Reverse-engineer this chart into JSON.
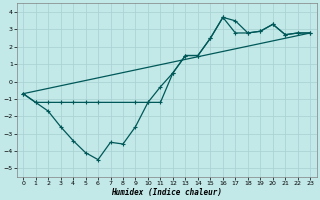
{
  "xlabel": "Humidex (Indice chaleur)",
  "bg_color": "#c2e8e8",
  "grid_color": "#a8d0d0",
  "line_color": "#005858",
  "xlim": [
    -0.5,
    23.5
  ],
  "ylim": [
    -5.5,
    4.5
  ],
  "yticks": [
    -5,
    -4,
    -3,
    -2,
    -1,
    0,
    1,
    2,
    3,
    4
  ],
  "xticks": [
    0,
    1,
    2,
    3,
    4,
    5,
    6,
    7,
    8,
    9,
    10,
    11,
    12,
    13,
    14,
    15,
    16,
    17,
    18,
    19,
    20,
    21,
    22,
    23
  ],
  "line1_x": [
    0,
    1,
    2,
    3,
    4,
    5,
    6,
    7,
    8,
    9,
    10,
    11,
    12,
    13,
    14,
    15,
    16,
    17,
    18,
    19,
    20,
    21,
    22,
    23
  ],
  "line1_y": [
    -0.7,
    -1.2,
    -1.7,
    -2.6,
    -3.4,
    -4.1,
    -4.5,
    -3.5,
    -3.6,
    -2.6,
    -1.2,
    -1.2,
    0.5,
    1.5,
    1.5,
    2.5,
    3.7,
    3.5,
    2.8,
    2.9,
    3.3,
    2.7,
    2.8,
    2.8
  ],
  "line2_x": [
    0,
    1,
    2,
    3,
    4,
    5,
    6,
    9,
    10,
    11,
    12,
    13,
    14,
    15,
    16,
    17,
    18,
    19,
    20,
    21,
    22,
    23
  ],
  "line2_y": [
    -0.7,
    -1.2,
    -1.2,
    -1.2,
    -1.2,
    -1.2,
    -1.2,
    -1.2,
    -1.2,
    -0.3,
    0.5,
    1.5,
    1.5,
    2.5,
    3.7,
    2.8,
    2.8,
    2.9,
    3.3,
    2.7,
    2.8,
    2.8
  ],
  "line3_x": [
    0,
    23
  ],
  "line3_y": [
    -0.7,
    2.8
  ]
}
